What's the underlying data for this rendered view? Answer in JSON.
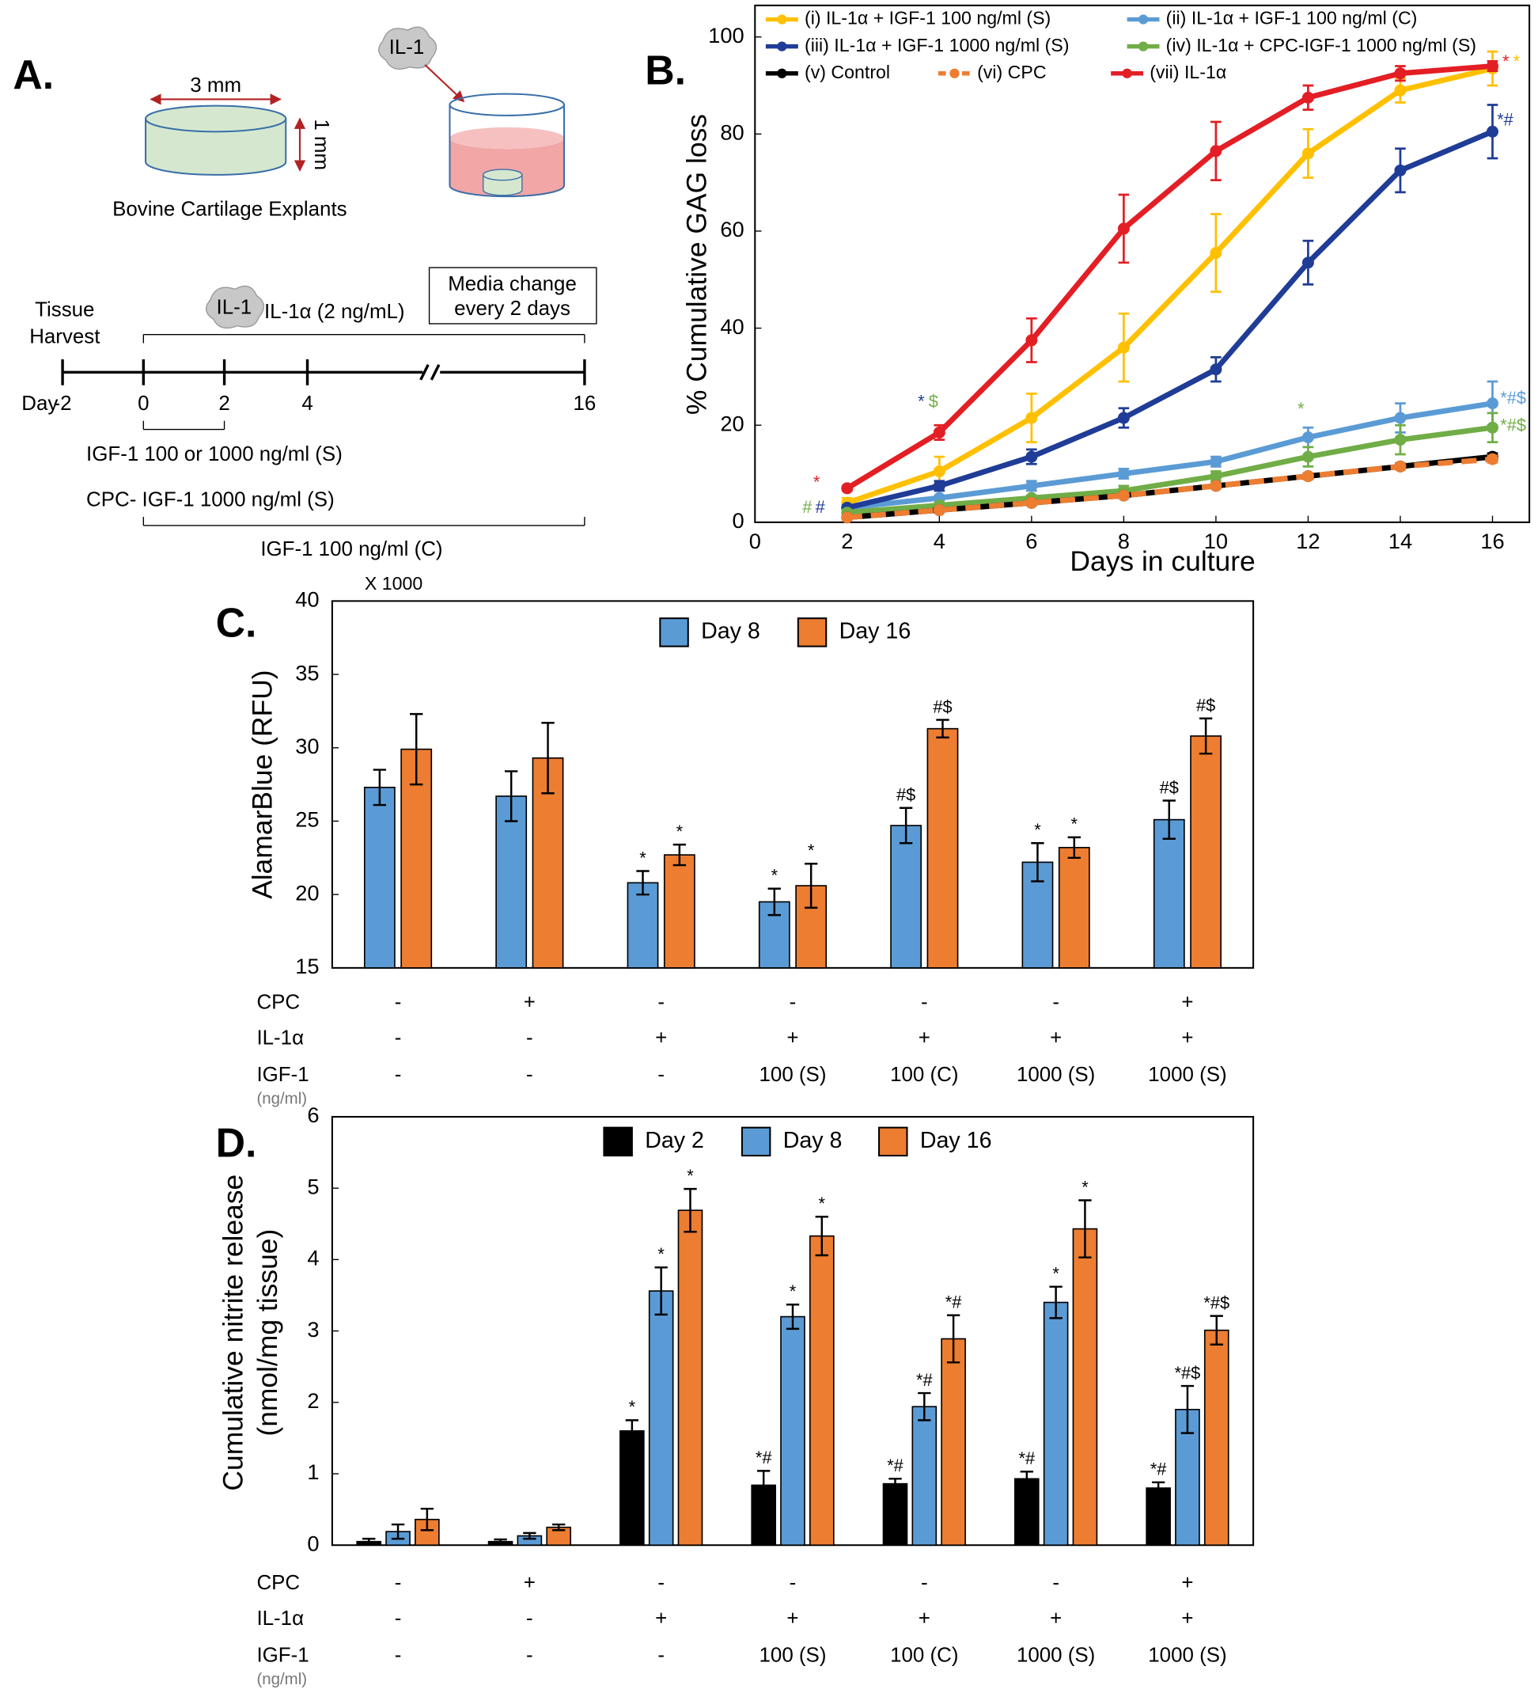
{
  "diagram": {
    "panel_label": "A.",
    "explant_width": "3 mm",
    "explant_height": "1 mm",
    "explant_caption": "Bovine Cartilage Explants",
    "icon_label": "IL-1",
    "harvest_line1": "Tissue",
    "harvest_line2": "Harvest",
    "treatment": "IL-1α (2 ng/mL)",
    "media_line1": "Media change",
    "media_line2": "every 2 days",
    "day_label": "Day",
    "days": [
      "-2",
      "0",
      "2",
      "4",
      "16"
    ],
    "igf_short": "IGF-1 100 or 1000 ng/ml (S)",
    "cpc": "CPC- IGF-1 1000 ng/ml (S)",
    "igf_continuous": "IGF-1 100 ng/ml (C)"
  },
  "chart_data": [
    {
      "type": "line",
      "panel_label": "B.",
      "xlabel": "Days in culture",
      "ylabel": "% Cumulative GAG loss",
      "x": [
        2,
        4,
        6,
        8,
        10,
        12,
        14,
        16
      ],
      "xlim": [
        0,
        16.8
      ],
      "ylim": [
        0,
        106.5
      ],
      "xticks": [
        0,
        2,
        4,
        6,
        8,
        10,
        12,
        14,
        16
      ],
      "yticks": [
        0,
        20,
        40,
        60,
        80,
        100
      ],
      "series": [
        {
          "name": "(i) IL-1α + IGF-1 100 ng/ml (S)",
          "color": "#FFC000",
          "values": [
            4,
            10.5,
            21.5,
            36,
            55.5,
            76,
            89,
            93.5
          ],
          "errors": [
            1,
            3,
            5,
            7,
            8,
            5,
            2.5,
            3.5
          ]
        },
        {
          "name": "(ii) IL-1α + IGF-1 100 ng/ml (C)",
          "color": "#5B9BD5",
          "values": [
            3,
            5,
            7.5,
            10,
            12.5,
            17.5,
            21.5,
            24.5
          ],
          "errors": [
            0.5,
            0.5,
            1,
            1,
            1,
            2,
            3,
            4.5
          ]
        },
        {
          "name": "(iii) IL-1α + IGF-1 1000 ng/ml (S)",
          "color": "#1F3C96",
          "values": [
            3,
            7.5,
            13.5,
            21.5,
            31.5,
            53.5,
            72.5,
            80.5
          ],
          "errors": [
            0.5,
            1,
            1.5,
            2,
            2.5,
            4.5,
            4.5,
            5.5
          ]
        },
        {
          "name": "(iv) IL-1α + CPC-IGF-1 1000 ng/ml (S)",
          "color": "#70AD47",
          "values": [
            2,
            3.5,
            5,
            6.5,
            9.5,
            13.5,
            17,
            19.5
          ],
          "errors": [
            0.5,
            0.5,
            0.5,
            1,
            1,
            2,
            3,
            3
          ]
        },
        {
          "name": "(v) Control",
          "color": "#000000",
          "values": [
            1,
            2.5,
            4,
            5.5,
            7.5,
            9.5,
            11.5,
            13.5
          ],
          "errors": [
            0.3,
            0.3,
            0.4,
            0.5,
            0.5,
            0.6,
            0.6,
            0.7
          ]
        },
        {
          "name": "(vi) CPC",
          "color": "#ED7D31",
          "dashed": true,
          "values": [
            1,
            2.5,
            4,
            5.5,
            7.5,
            9.5,
            11.5,
            13
          ],
          "errors": [
            0.3,
            0.3,
            0.4,
            0.5,
            0.5,
            0.6,
            0.6,
            0.7
          ]
        },
        {
          "name": "(vii) IL-1α",
          "color": "#E31E24",
          "values": [
            7,
            18.5,
            37.5,
            60.5,
            76.5,
            87.5,
            92.5,
            94
          ],
          "errors": [
            0.5,
            1.5,
            4.5,
            7,
            6,
            2.5,
            1.5,
            1
          ]
        }
      ],
      "annotations": [
        {
          "text": "*",
          "color": "#E31E24"
        },
        {
          "text": "#",
          "color": "#70AD47"
        },
        {
          "text": "#",
          "color": "#1F3C96"
        },
        {
          "text": "*",
          "color": "#1F3C96"
        },
        {
          "text": "$",
          "color": "#70AD47"
        },
        {
          "text": "*",
          "color": "#70AD47"
        },
        {
          "text": "*",
          "color": "#E31E24"
        },
        {
          "text": "*",
          "color": "#FFC000"
        },
        {
          "text": "*#",
          "color": "#1F3C96"
        },
        {
          "text": "*#$",
          "color": "#5B9BD5"
        },
        {
          "text": "*#$",
          "color": "#70AD47"
        }
      ]
    },
    {
      "type": "bar",
      "panel_label": "C.",
      "ylabel": [
        "AlamarBlue (RFU)"
      ],
      "axis_multiplier": "X 1000",
      "ylim": [
        15,
        40
      ],
      "yticks": [
        15,
        20,
        25,
        30,
        35,
        40
      ],
      "series": [
        {
          "name": "Day 8",
          "color": "#5B9BD5",
          "values": [
            27.3,
            26.7,
            20.8,
            19.5,
            24.7,
            22.2,
            25.1
          ],
          "errors": [
            1.2,
            1.7,
            0.8,
            0.9,
            1.2,
            1.3,
            1.3
          ],
          "significance": [
            null,
            null,
            "*",
            "*",
            "#$",
            "*",
            "#$"
          ]
        },
        {
          "name": "Day 16",
          "color": "#ED7D31",
          "values": [
            29.9,
            29.3,
            22.7,
            20.6,
            31.3,
            23.2,
            30.8
          ],
          "errors": [
            2.4,
            2.4,
            0.7,
            1.5,
            0.6,
            0.7,
            1.2
          ],
          "significance": [
            null,
            null,
            "*",
            "*",
            "#$",
            "*",
            "#$"
          ]
        }
      ],
      "conditions": [
        {
          "label": "CPC",
          "values": [
            "-",
            "+",
            "-",
            "-",
            "-",
            "-",
            "+"
          ]
        },
        {
          "label": "IL-1α",
          "values": [
            "-",
            "-",
            "+",
            "+",
            "+",
            "+",
            "+"
          ]
        },
        {
          "label": "IGF-1",
          "values": [
            "-",
            "-",
            "-",
            "100 (S)",
            "100 (C)",
            "1000 (S)",
            "1000 (S)"
          ]
        }
      ],
      "conditions_unit": "(ng/ml)"
    },
    {
      "type": "bar",
      "panel_label": "D.",
      "ylabel": [
        "Cumulative nitrite release",
        "(nmol/mg tissue)"
      ],
      "ylim": [
        0,
        6
      ],
      "yticks": [
        0,
        1,
        2,
        3,
        4,
        5,
        6
      ],
      "series": [
        {
          "name": "Day 2",
          "color": "#000000",
          "values": [
            0.05,
            0.05,
            1.6,
            0.84,
            0.86,
            0.93,
            0.8
          ],
          "errors": [
            0.04,
            0.03,
            0.15,
            0.2,
            0.07,
            0.1,
            0.08
          ],
          "significance": [
            null,
            null,
            "*",
            "*#",
            "*#",
            "*#",
            "*#"
          ]
        },
        {
          "name": "Day 8",
          "color": "#5B9BD5",
          "values": [
            0.19,
            0.13,
            3.56,
            3.2,
            1.94,
            3.4,
            1.9
          ],
          "errors": [
            0.1,
            0.04,
            0.33,
            0.17,
            0.19,
            0.22,
            0.33
          ],
          "significance": [
            null,
            null,
            "*",
            "*",
            "*#",
            "*",
            "*#$"
          ]
        },
        {
          "name": "Day 16",
          "color": "#ED7D31",
          "values": [
            0.36,
            0.25,
            4.69,
            4.33,
            2.89,
            4.43,
            3.01
          ],
          "errors": [
            0.15,
            0.04,
            0.3,
            0.27,
            0.33,
            0.4,
            0.2
          ],
          "significance": [
            null,
            null,
            "*",
            "*",
            "*#",
            "*",
            "*#$"
          ]
        }
      ],
      "conditions": [
        {
          "label": "CPC",
          "values": [
            "-",
            "+",
            "-",
            "-",
            "-",
            "-",
            "+"
          ]
        },
        {
          "label": "IL-1α",
          "values": [
            "-",
            "-",
            "+",
            "+",
            "+",
            "+",
            "+"
          ]
        },
        {
          "label": "IGF-1",
          "values": [
            "-",
            "-",
            "-",
            "100 (S)",
            "100 (C)",
            "1000 (S)",
            "1000 (S)"
          ]
        }
      ],
      "conditions_unit": "(ng/ml)"
    }
  ]
}
